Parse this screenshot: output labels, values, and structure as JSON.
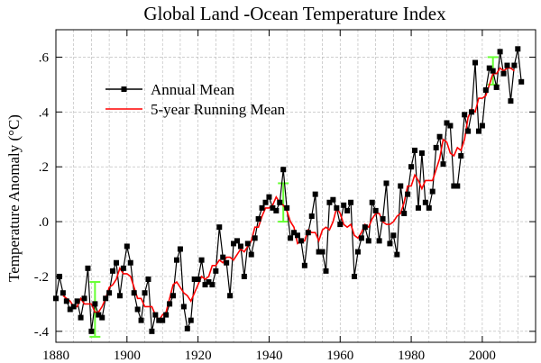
{
  "chart_data": {
    "type": "line",
    "title": "Global Land -Ocean Temperature Index",
    "xlabel": "",
    "ylabel": "Temperature Anomaly (°C)",
    "xlim": [
      1880,
      2015
    ],
    "ylim": [
      -0.44,
      0.7
    ],
    "x_ticks": [
      1880,
      1900,
      1920,
      1940,
      1960,
      1980,
      2000
    ],
    "x_tick_labels": [
      "1880",
      "1900",
      "1920",
      "1940",
      "1960",
      "1980",
      "2000"
    ],
    "y_ticks": [
      -0.4,
      -0.2,
      0.0,
      0.2,
      0.4,
      0.6
    ],
    "y_tick_labels": [
      "-.4",
      "-.2",
      ".0",
      ".2",
      ".4",
      ".6"
    ],
    "grid": true,
    "legend_position": "upper-left",
    "series": [
      {
        "name": "Annual Mean",
        "color": "#000000",
        "marker": "square",
        "x": [
          1880,
          1881,
          1882,
          1883,
          1884,
          1885,
          1886,
          1887,
          1888,
          1889,
          1890,
          1891,
          1892,
          1893,
          1894,
          1895,
          1896,
          1897,
          1898,
          1899,
          1900,
          1901,
          1902,
          1903,
          1904,
          1905,
          1906,
          1907,
          1908,
          1909,
          1910,
          1911,
          1912,
          1913,
          1914,
          1915,
          1916,
          1917,
          1918,
          1919,
          1920,
          1921,
          1922,
          1923,
          1924,
          1925,
          1926,
          1927,
          1928,
          1929,
          1930,
          1931,
          1932,
          1933,
          1934,
          1935,
          1936,
          1937,
          1938,
          1939,
          1940,
          1941,
          1942,
          1943,
          1944,
          1945,
          1946,
          1947,
          1948,
          1949,
          1950,
          1951,
          1952,
          1953,
          1954,
          1955,
          1956,
          1957,
          1958,
          1959,
          1960,
          1961,
          1962,
          1963,
          1964,
          1965,
          1966,
          1967,
          1968,
          1969,
          1970,
          1971,
          1972,
          1973,
          1974,
          1975,
          1976,
          1977,
          1978,
          1979,
          1980,
          1981,
          1982,
          1983,
          1984,
          1985,
          1986,
          1987,
          1988,
          1989,
          1990,
          1991,
          1992,
          1993,
          1994,
          1995,
          1996,
          1997,
          1998,
          1999,
          2000,
          2001,
          2002,
          2003,
          2004,
          2005,
          2006,
          2007,
          2008,
          2009,
          2010,
          2011
        ],
        "y": [
          -0.28,
          -0.2,
          -0.26,
          -0.29,
          -0.32,
          -0.31,
          -0.29,
          -0.35,
          -0.28,
          -0.17,
          -0.4,
          -0.3,
          -0.34,
          -0.35,
          -0.28,
          -0.26,
          -0.18,
          -0.15,
          -0.27,
          -0.17,
          -0.09,
          -0.15,
          -0.26,
          -0.32,
          -0.36,
          -0.26,
          -0.21,
          -0.4,
          -0.34,
          -0.36,
          -0.36,
          -0.34,
          -0.3,
          -0.27,
          -0.14,
          -0.1,
          -0.31,
          -0.39,
          -0.36,
          -0.21,
          -0.21,
          -0.14,
          -0.23,
          -0.22,
          -0.23,
          -0.18,
          -0.02,
          -0.13,
          -0.15,
          -0.27,
          -0.08,
          -0.07,
          -0.09,
          -0.2,
          -0.08,
          -0.12,
          -0.06,
          0.01,
          0.05,
          0.07,
          0.09,
          0.05,
          0.04,
          0.07,
          0.19,
          0.05,
          -0.06,
          -0.04,
          -0.05,
          -0.07,
          -0.16,
          -0.04,
          0.02,
          0.1,
          -0.11,
          -0.11,
          -0.18,
          0.07,
          0.08,
          0.05,
          -0.01,
          0.06,
          0.04,
          0.07,
          -0.2,
          -0.11,
          -0.06,
          -0.02,
          -0.07,
          0.07,
          0.04,
          -0.07,
          0.01,
          0.14,
          -0.08,
          -0.05,
          -0.12,
          0.13,
          0.03,
          0.1,
          0.2,
          0.26,
          0.05,
          0.25,
          0.07,
          0.05,
          0.11,
          0.27,
          0.31,
          0.21,
          0.36,
          0.35,
          0.13,
          0.13,
          0.24,
          0.39,
          0.33,
          0.4,
          0.58,
          0.33,
          0.35,
          0.48,
          0.56,
          0.55,
          0.49,
          0.62,
          0.54,
          0.57,
          0.44,
          0.57,
          0.63,
          0.51
        ]
      },
      {
        "name": "5-year Running Mean",
        "color": "#ff0000",
        "x": [
          1882,
          1883,
          1884,
          1885,
          1886,
          1887,
          1888,
          1889,
          1890,
          1891,
          1892,
          1893,
          1894,
          1895,
          1896,
          1897,
          1898,
          1899,
          1900,
          1901,
          1902,
          1903,
          1904,
          1905,
          1906,
          1907,
          1908,
          1909,
          1910,
          1911,
          1912,
          1913,
          1914,
          1915,
          1916,
          1917,
          1918,
          1919,
          1920,
          1921,
          1922,
          1923,
          1924,
          1925,
          1926,
          1927,
          1928,
          1929,
          1930,
          1931,
          1932,
          1933,
          1934,
          1935,
          1936,
          1937,
          1938,
          1939,
          1940,
          1941,
          1942,
          1943,
          1944,
          1945,
          1946,
          1947,
          1948,
          1949,
          1950,
          1951,
          1952,
          1953,
          1954,
          1955,
          1956,
          1957,
          1958,
          1959,
          1960,
          1961,
          1962,
          1963,
          1964,
          1965,
          1966,
          1967,
          1968,
          1969,
          1970,
          1971,
          1972,
          1973,
          1974,
          1975,
          1976,
          1977,
          1978,
          1979,
          1980,
          1981,
          1982,
          1983,
          1984,
          1985,
          1986,
          1987,
          1988,
          1989,
          1990,
          1991,
          1992,
          1993,
          1994,
          1995,
          1996,
          1997,
          1998,
          1999,
          2000,
          2001,
          2002,
          2003,
          2004,
          2005,
          2006,
          2007,
          2008,
          2009
        ],
        "y": [
          -0.27,
          -0.28,
          -0.29,
          -0.31,
          -0.31,
          -0.28,
          -0.3,
          -0.3,
          -0.3,
          -0.33,
          -0.33,
          -0.31,
          -0.28,
          -0.24,
          -0.23,
          -0.21,
          -0.17,
          -0.19,
          -0.19,
          -0.2,
          -0.24,
          -0.28,
          -0.28,
          -0.31,
          -0.31,
          -0.31,
          -0.34,
          -0.36,
          -0.34,
          -0.33,
          -0.28,
          -0.23,
          -0.22,
          -0.24,
          -0.26,
          -0.27,
          -0.29,
          -0.26,
          -0.23,
          -0.2,
          -0.21,
          -0.2,
          -0.16,
          -0.16,
          -0.14,
          -0.15,
          -0.13,
          -0.13,
          -0.14,
          -0.12,
          -0.1,
          -0.11,
          -0.09,
          -0.07,
          -0.02,
          -0.02,
          0.02,
          0.05,
          0.05,
          0.06,
          0.09,
          0.07,
          0.06,
          0.04,
          0.0,
          -0.02,
          -0.08,
          -0.07,
          -0.07,
          -0.03,
          -0.04,
          -0.04,
          -0.07,
          -0.03,
          -0.02,
          -0.03,
          0.0,
          0.05,
          0.03,
          -0.01,
          -0.02,
          -0.01,
          -0.05,
          -0.06,
          -0.04,
          -0.01,
          -0.02,
          0.01,
          0.03,
          0.03,
          0.0,
          -0.01,
          -0.01,
          0.0,
          0.02,
          0.03,
          0.07,
          0.13,
          0.13,
          0.17,
          0.15,
          0.12,
          0.15,
          0.15,
          0.15,
          0.19,
          0.23,
          0.3,
          0.29,
          0.25,
          0.24,
          0.27,
          0.26,
          0.3,
          0.38,
          0.41,
          0.4,
          0.45,
          0.45,
          0.46,
          0.5,
          0.54,
          0.54,
          0.56,
          0.55,
          0.56,
          0.56,
          0.55
        ]
      }
    ],
    "error_bars": [
      {
        "x": 1891,
        "y": -0.32,
        "low": -0.42,
        "high": -0.22,
        "color": "#66ff33"
      },
      {
        "x": 1944,
        "y": 0.07,
        "low": 0.0,
        "high": 0.14,
        "color": "#66ff33"
      },
      {
        "x": 2003,
        "y": 0.55,
        "low": 0.5,
        "high": 0.6,
        "color": "#66ff33"
      }
    ]
  }
}
